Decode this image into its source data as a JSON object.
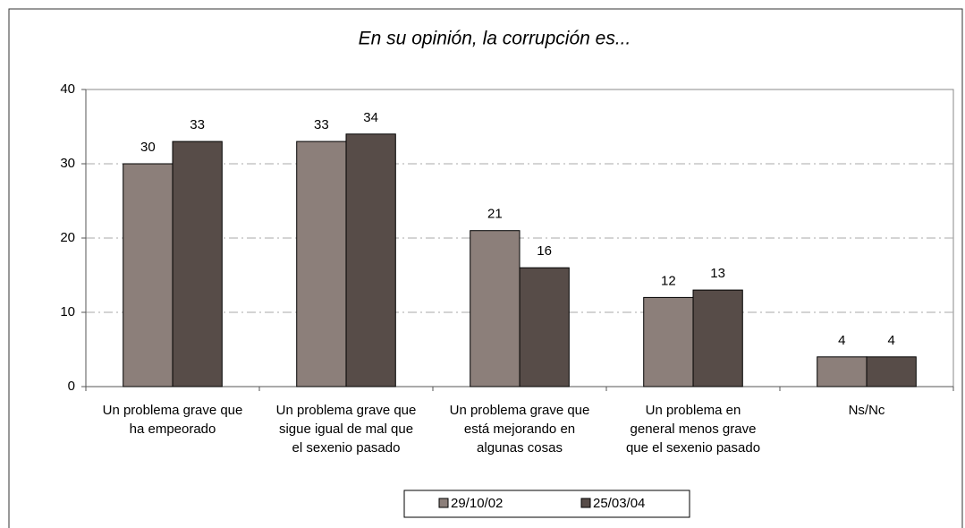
{
  "chart_data": {
    "type": "bar",
    "title": "En su opinión, la corrupción es...",
    "categories": [
      [
        "Un problema grave que",
        "ha empeorado"
      ],
      [
        "Un problema grave que",
        "sigue igual de mal que",
        "el sexenio pasado"
      ],
      [
        "Un problema grave que",
        "está mejorando en",
        "algunas cosas"
      ],
      [
        "Un problema en",
        "general menos grave",
        "que el sexenio pasado"
      ],
      [
        "Ns/Nc"
      ]
    ],
    "series": [
      {
        "name": "29/10/02",
        "color": "#8c7f7a",
        "values": [
          30,
          33,
          21,
          12,
          4
        ]
      },
      {
        "name": "25/03/04",
        "color": "#574c48",
        "values": [
          33,
          34,
          16,
          13,
          4
        ]
      }
    ],
    "ylim": [
      0,
      40
    ],
    "yticks": [
      0,
      10,
      20,
      30,
      40
    ],
    "grid": true,
    "legend": "bottom"
  }
}
